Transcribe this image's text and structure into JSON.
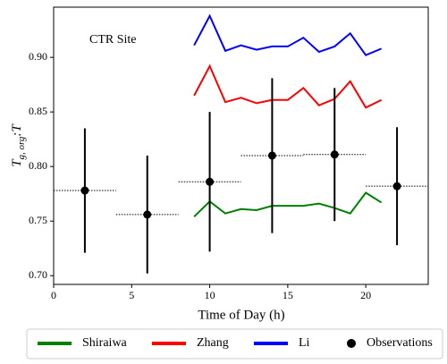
{
  "chart_data": {
    "type": "line",
    "annotation": "CTR Site",
    "x_label": "Time of Day (h)",
    "y_label": {
      "main": "T",
      "sub": "g, org",
      "suffix": ":T"
    },
    "xlim": [
      0,
      24
    ],
    "xticks": [
      0,
      5,
      10,
      15,
      20
    ],
    "ylim": [
      0.692,
      0.946
    ],
    "yticks": [
      {
        "value": 0.7,
        "label": "0.70"
      },
      {
        "value": 0.75,
        "label": "0.75"
      },
      {
        "value": 0.8,
        "label": "0.80"
      },
      {
        "value": 0.85,
        "label": "0.85"
      },
      {
        "value": 0.9,
        "label": "0.90"
      }
    ],
    "x": [
      9,
      10,
      11,
      12,
      13,
      14,
      15,
      16,
      17,
      18,
      19,
      20,
      21
    ],
    "series": [
      {
        "name": "Shiraiwa",
        "color": "#008000",
        "values": [
          0.754,
          0.768,
          0.757,
          0.761,
          0.76,
          0.764,
          0.764,
          0.764,
          0.766,
          0.762,
          0.757,
          0.776,
          0.767
        ]
      },
      {
        "name": "Zhang",
        "color": "#ff0000",
        "values": [
          0.865,
          0.892,
          0.859,
          0.863,
          0.858,
          0.861,
          0.861,
          0.872,
          0.856,
          0.862,
          0.878,
          0.854,
          0.861
        ]
      },
      {
        "name": "Li",
        "color": "#0000ff",
        "values": [
          0.911,
          0.938,
          0.906,
          0.911,
          0.907,
          0.91,
          0.91,
          0.918,
          0.905,
          0.91,
          0.922,
          0.902,
          0.908
        ]
      }
    ],
    "observations": {
      "name": "Observations",
      "color": "#000000",
      "x": [
        2,
        6,
        10,
        14,
        18,
        22
      ],
      "y": [
        0.778,
        0.756,
        0.786,
        0.81,
        0.811,
        0.782
      ],
      "yerr": [
        0.057,
        0.054,
        0.064,
        0.071,
        0.061,
        0.054
      ],
      "xerr": [
        2,
        2,
        2,
        2,
        2,
        2
      ]
    }
  }
}
